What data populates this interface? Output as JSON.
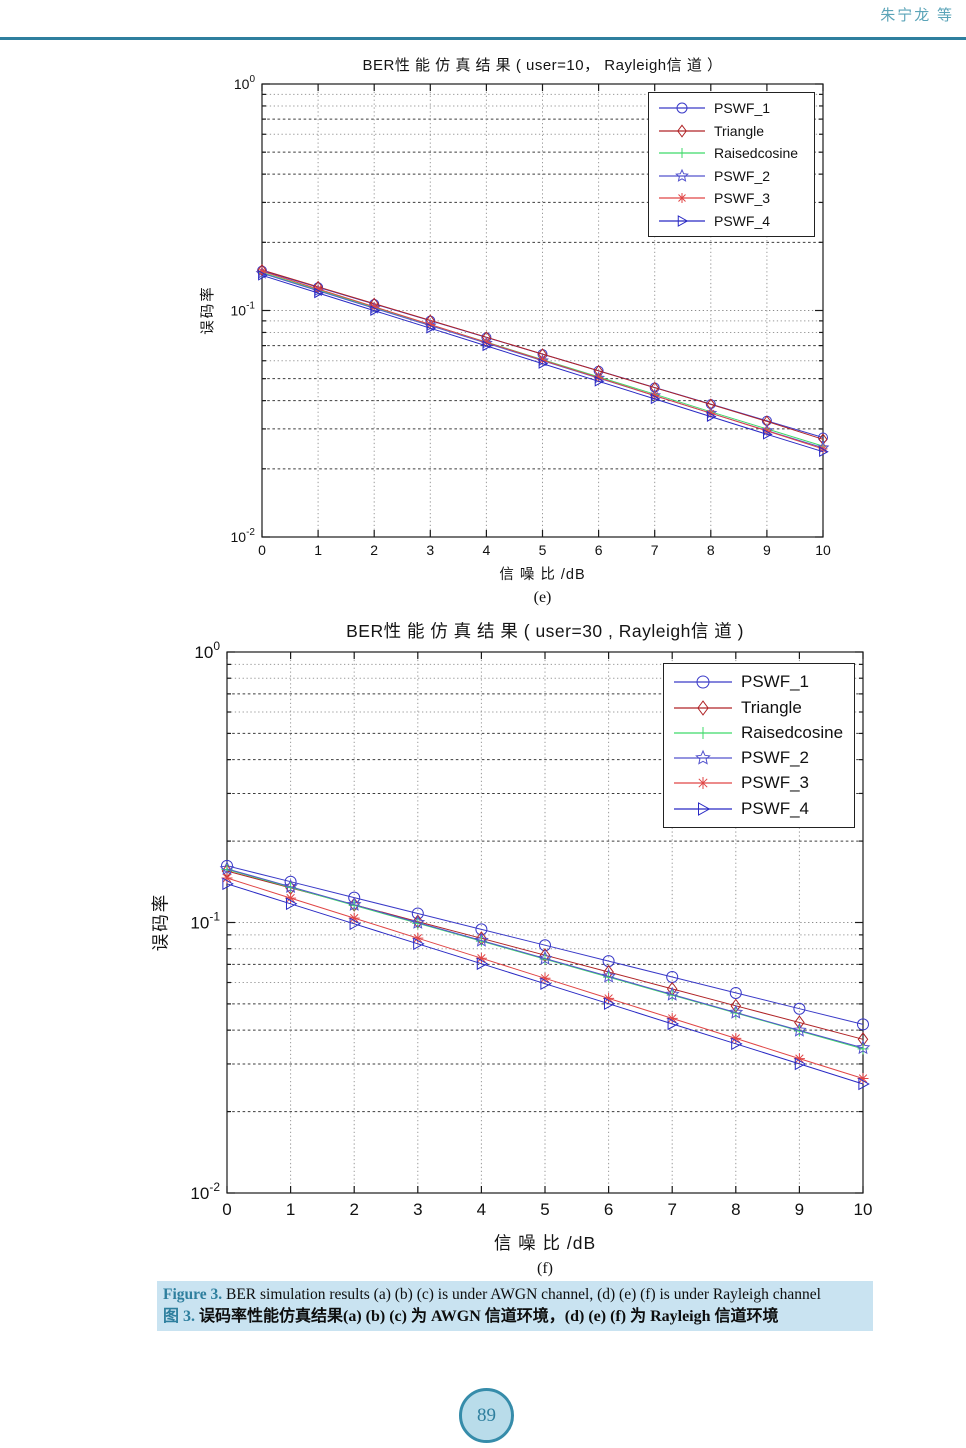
{
  "page": {
    "header": {
      "author": "朱宁龙 等"
    },
    "page_number": "89",
    "rule_color": "#2e7f9e",
    "caption": {
      "en_label": "Figure 3.",
      "en_text": "BER simulation results (a) (b) (c) is under AWGN channel, (d) (e) (f) is under Rayleigh channel",
      "zh_label": "图 3.",
      "zh_text": "误码率性能仿真结果(a) (b) (c) 为 AWGN 信道环境，(d) (e) (f) 为 Rayleigh 信道环境",
      "highlight_color": "#c9e3f1",
      "label_color": "#2e7f9e"
    }
  },
  "chart_data": [
    {
      "type": "line",
      "panel_label": "(e)",
      "title": "BER性 能 仿 真 结 果 ( user=10， Rayleigh信 道 ）",
      "xlabel": "信 噪 比 /dB",
      "ylabel": "误码率",
      "ylog": true,
      "xlim": [
        0,
        10
      ],
      "ylim": [
        0.01,
        1
      ],
      "grid": true,
      "legend_position": "upper-right",
      "x": [
        0,
        1,
        2,
        3,
        4,
        5,
        6,
        7,
        8,
        9,
        10
      ],
      "ytick_exponents": [
        "0",
        "-1",
        "-2"
      ],
      "series": [
        {
          "name": "PSWF_1",
          "marker": "circle",
          "color": "#3a3ac8",
          "values": [
            0.15,
            0.1266,
            0.1068,
            0.0902,
            0.0761,
            0.0642,
            0.0542,
            0.0457,
            0.0386,
            0.0326,
            0.0275
          ]
        },
        {
          "name": "Triangle",
          "marker": "diamond",
          "color": "#b02427",
          "values": [
            0.151,
            0.1273,
            0.1073,
            0.0904,
            0.0762,
            0.0642,
            0.0541,
            0.0456,
            0.0385,
            0.0324,
            0.027
          ]
        },
        {
          "name": "Raisedcosine",
          "marker": "plus",
          "color": "#3fd969",
          "values": [
            0.147,
            0.1232,
            0.1032,
            0.0865,
            0.0725,
            0.0607,
            0.0509,
            0.0427,
            0.0357,
            0.03,
            0.0252
          ]
        },
        {
          "name": "PSWF_2",
          "marker": "star",
          "color": "#5353cd",
          "values": [
            0.146,
            0.1222,
            0.1023,
            0.0857,
            0.0717,
            0.06,
            0.0503,
            0.0421,
            0.0352,
            0.0295,
            0.0248
          ]
        },
        {
          "name": "PSWF_3",
          "marker": "asterisk",
          "color": "#e04646",
          "values": [
            0.149,
            0.1244,
            0.1039,
            0.0867,
            0.0724,
            0.0604,
            0.0505,
            0.0421,
            0.0352,
            0.0294,
            0.0245
          ]
        },
        {
          "name": "PSWF_4",
          "marker": "triangle-right",
          "color": "#2929c4",
          "values": [
            0.143,
            0.1195,
            0.0999,
            0.0835,
            0.0698,
            0.0583,
            0.0487,
            0.0407,
            0.034,
            0.0284,
            0.0238
          ]
        }
      ]
    },
    {
      "type": "line",
      "panel_label": "(f)",
      "title": "BER性 能 仿 真 结 果 ( user=30 , Rayleigh信 道 )",
      "xlabel": "信 噪 比 /dB",
      "ylabel": "误码率",
      "ylog": true,
      "xlim": [
        0,
        10
      ],
      "ylim": [
        0.01,
        1
      ],
      "grid": true,
      "legend_position": "upper-right",
      "x": [
        0,
        1,
        2,
        3,
        4,
        5,
        6,
        7,
        8,
        9,
        10
      ],
      "ytick_exponents": [
        "0",
        "-1",
        "-2"
      ],
      "series": [
        {
          "name": "PSWF_1",
          "marker": "circle",
          "color": "#3a3ac8",
          "values": [
            0.162,
            0.1415,
            0.1236,
            0.108,
            0.0943,
            0.0824,
            0.072,
            0.0629,
            0.0549,
            0.048,
            0.042
          ]
        },
        {
          "name": "Triangle",
          "marker": "diamond",
          "color": "#b02427",
          "values": [
            0.155,
            0.1343,
            0.1164,
            0.1008,
            0.0874,
            0.0757,
            0.0656,
            0.0568,
            0.0492,
            0.0427,
            0.037
          ]
        },
        {
          "name": "Raisedcosine",
          "marker": "plus",
          "color": "#3fd969",
          "values": [
            0.157,
            0.1348,
            0.1157,
            0.0993,
            0.0853,
            0.0732,
            0.0628,
            0.0539,
            0.0463,
            0.0397,
            0.0341
          ]
        },
        {
          "name": "PSWF_2",
          "marker": "star",
          "color": "#5353cd",
          "values": [
            0.158,
            0.1356,
            0.1164,
            0.0999,
            0.0858,
            0.0736,
            0.0632,
            0.0542,
            0.0465,
            0.0399,
            0.0344
          ]
        },
        {
          "name": "PSWF_3",
          "marker": "asterisk",
          "color": "#e04646",
          "values": [
            0.146,
            0.1231,
            0.1038,
            0.0875,
            0.0738,
            0.0622,
            0.0524,
            0.0442,
            0.0373,
            0.0314,
            0.0265
          ]
        },
        {
          "name": "PSWF_4",
          "marker": "triangle-right",
          "color": "#2929c4",
          "values": [
            0.139,
            0.1173,
            0.0989,
            0.0834,
            0.0704,
            0.0594,
            0.0501,
            0.0422,
            0.0356,
            0.03,
            0.0253
          ]
        }
      ]
    }
  ]
}
